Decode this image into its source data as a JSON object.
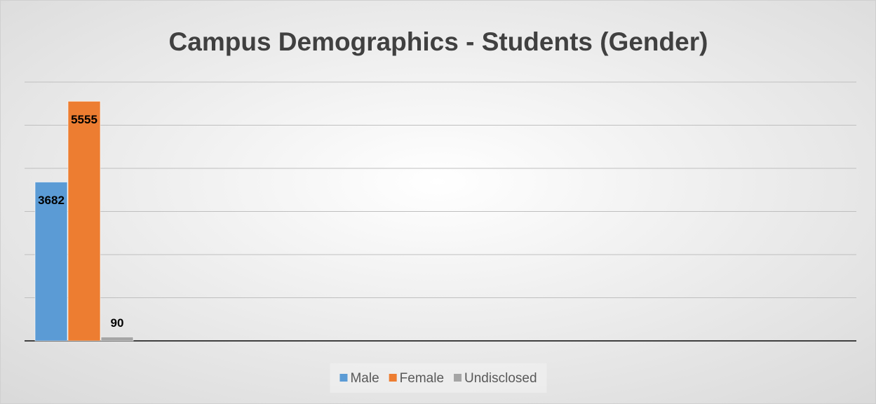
{
  "chart_data": {
    "type": "bar",
    "title": "Campus Demographics - Students (Gender)",
    "categories": [
      null
    ],
    "series": [
      {
        "name": "Male",
        "color": "#5b9bd5",
        "values": [
          3682
        ]
      },
      {
        "name": "Female",
        "color": "#ed7d31",
        "values": [
          5555
        ]
      },
      {
        "name": "Undisclosed",
        "color": "#a5a5a5",
        "values": [
          90
        ]
      }
    ],
    "ylim": [
      0,
      6000
    ],
    "yticks": [
      0,
      1000,
      2000,
      3000,
      4000,
      5000,
      6000
    ],
    "grid": true,
    "legend": "bottom",
    "data_labels": true
  }
}
